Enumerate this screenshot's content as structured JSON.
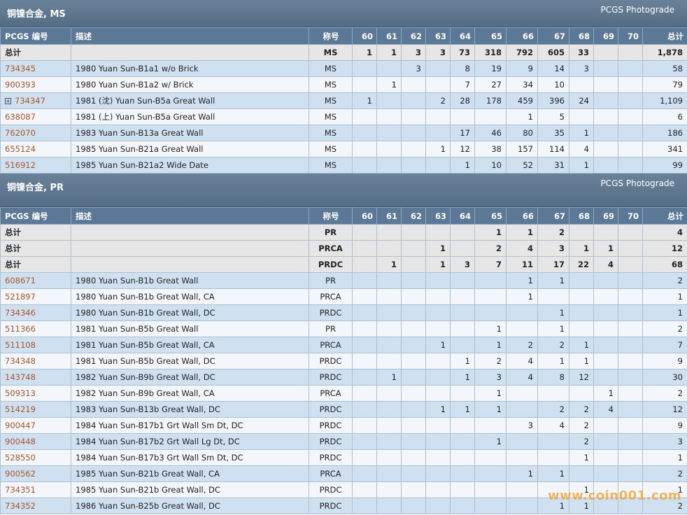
{
  "sections": [
    {
      "title": "铜镍合金, MS",
      "source": "PCGS Photograde",
      "header": [
        "PCGS 编号",
        "描述",
        "称号",
        "60",
        "61",
        "62",
        "63",
        "64",
        "65",
        "66",
        "67",
        "68",
        "69",
        "70",
        "总计"
      ],
      "rows": [
        {
          "cells": [
            "总计",
            null,
            "MS",
            1,
            1,
            3,
            3,
            73,
            318,
            792,
            605,
            33,
            null,
            null,
            "1,878"
          ]
        },
        {
          "cells": [
            "734345",
            "1980 Yuan Sun-B1a1 w/o Brick",
            "MS",
            null,
            null,
            3,
            null,
            8,
            19,
            9,
            14,
            3,
            null,
            null,
            58
          ]
        },
        {
          "cells": [
            "900393",
            "1980 Yuan Sun-B1a2 w/ Brick",
            "MS",
            null,
            1,
            null,
            null,
            7,
            27,
            34,
            10,
            null,
            null,
            null,
            79
          ]
        },
        {
          "cells": [
            "734347",
            "1981 (沈) Yuan Sun-B5a Great Wall",
            "MS",
            1,
            null,
            null,
            2,
            28,
            178,
            459,
            396,
            24,
            null,
            null,
            "1,109"
          ],
          "expandable": true
        },
        {
          "cells": [
            "638087",
            "1981 (上) Yuan Sun-B5a Great Wall",
            "MS",
            null,
            null,
            null,
            null,
            null,
            null,
            1,
            5,
            null,
            null,
            null,
            6
          ]
        },
        {
          "cells": [
            "762070",
            "1983 Yuan Sun-B13a Great Wall",
            "MS",
            null,
            null,
            null,
            null,
            17,
            46,
            80,
            35,
            1,
            null,
            null,
            186
          ]
        },
        {
          "cells": [
            "655124",
            "1985 Yuan Sun-B21a Great Wall",
            "MS",
            null,
            null,
            null,
            1,
            12,
            38,
            157,
            114,
            4,
            null,
            null,
            341
          ]
        },
        {
          "cells": [
            "516912",
            "1985 Yuan Sun-B21a2 Wide Date",
            "MS",
            null,
            null,
            null,
            null,
            1,
            10,
            52,
            31,
            1,
            null,
            null,
            99
          ]
        }
      ]
    },
    {
      "title": "铜镍合金, PR",
      "source": "PCGS Photograde",
      "header": [
        "PCGS 编号",
        "描述",
        "称号",
        "60",
        "61",
        "62",
        "63",
        "64",
        "65",
        "66",
        "67",
        "68",
        "69",
        "70",
        "总计"
      ],
      "rows": [
        {
          "cells": [
            "总计",
            null,
            "PR",
            null,
            null,
            null,
            null,
            null,
            1,
            1,
            2,
            null,
            null,
            null,
            4
          ]
        },
        {
          "cells": [
            "总计",
            null,
            "PRCA",
            null,
            null,
            null,
            1,
            null,
            2,
            4,
            3,
            1,
            1,
            null,
            12
          ]
        },
        {
          "cells": [
            "总计",
            null,
            "PRDC",
            null,
            1,
            null,
            1,
            3,
            7,
            11,
            17,
            22,
            4,
            null,
            68
          ]
        },
        {
          "cells": [
            "608671",
            "1980 Yuan Sun-B1b Great Wall",
            "PR",
            null,
            null,
            null,
            null,
            null,
            null,
            1,
            1,
            null,
            null,
            null,
            2
          ]
        },
        {
          "cells": [
            "521897",
            "1980 Yuan Sun-B1b Great Wall, CA",
            "PRCA",
            null,
            null,
            null,
            null,
            null,
            null,
            1,
            null,
            null,
            null,
            null,
            1
          ]
        },
        {
          "cells": [
            "734346",
            "1980 Yuan Sun-B1b Great Wall, DC",
            "PRDC",
            null,
            null,
            null,
            null,
            null,
            null,
            null,
            1,
            null,
            null,
            null,
            1
          ]
        },
        {
          "cells": [
            "511366",
            "1981 Yuan Sun-B5b Great Wall",
            "PR",
            null,
            null,
            null,
            null,
            null,
            1,
            null,
            1,
            null,
            null,
            null,
            2
          ]
        },
        {
          "cells": [
            "511108",
            "1981 Yuan Sun-B5b Great Wall, CA",
            "PRCA",
            null,
            null,
            null,
            1,
            null,
            1,
            2,
            2,
            1,
            null,
            null,
            7
          ]
        },
        {
          "cells": [
            "734348",
            "1981 Yuan Sun-B5b Great Wall, DC",
            "PRDC",
            null,
            null,
            null,
            null,
            1,
            2,
            4,
            1,
            1,
            null,
            null,
            9
          ]
        },
        {
          "cells": [
            "143748",
            "1982 Yuan Sun-B9b Great Wall, DC",
            "PRDC",
            null,
            1,
            null,
            null,
            1,
            3,
            4,
            8,
            12,
            null,
            null,
            30
          ]
        },
        {
          "cells": [
            "509313",
            "1982 Yuan Sun-B9b Great Wall, CA",
            "PRCA",
            null,
            null,
            null,
            null,
            null,
            1,
            null,
            null,
            null,
            1,
            null,
            2
          ]
        },
        {
          "cells": [
            "514219",
            "1983 Yuan Sun-B13b Great Wall, DC",
            "PRDC",
            null,
            null,
            null,
            1,
            1,
            1,
            null,
            2,
            2,
            4,
            null,
            12
          ]
        },
        {
          "cells": [
            "900447",
            "1984 Yuan Sun-B17b1 Grt Wall Sm Dt, DC",
            "PRDC",
            null,
            null,
            null,
            null,
            null,
            null,
            3,
            4,
            2,
            null,
            null,
            9
          ]
        },
        {
          "cells": [
            "900448",
            "1984 Yuan Sun-B17b2 Grt Wall Lg Dt, DC",
            "PRDC",
            null,
            null,
            null,
            null,
            null,
            1,
            null,
            null,
            2,
            null,
            null,
            3
          ]
        },
        {
          "cells": [
            "528550",
            "1984 Yuan Sun-B17b3 Grt Wall Sm Dt, DC",
            "PRDC",
            null,
            null,
            null,
            null,
            null,
            null,
            null,
            null,
            1,
            null,
            null,
            1
          ]
        },
        {
          "cells": [
            "900562",
            "1985 Yuan Sun-B21b Great Wall, CA",
            "PRCA",
            null,
            null,
            null,
            null,
            null,
            null,
            1,
            1,
            null,
            null,
            null,
            2
          ]
        },
        {
          "cells": [
            "734351",
            "1985 Yuan Sun-B21b Great Wall, DC",
            "PRDC",
            null,
            null,
            null,
            null,
            null,
            null,
            null,
            null,
            1,
            null,
            null,
            1
          ]
        },
        {
          "cells": [
            "734352",
            "1986 Yuan Sun-B25b Great Wall, DC",
            "PRDC",
            null,
            null,
            null,
            null,
            null,
            null,
            null,
            1,
            1,
            null,
            null,
            2
          ]
        }
      ]
    }
  ],
  "watermark": "www.coin001.com"
}
